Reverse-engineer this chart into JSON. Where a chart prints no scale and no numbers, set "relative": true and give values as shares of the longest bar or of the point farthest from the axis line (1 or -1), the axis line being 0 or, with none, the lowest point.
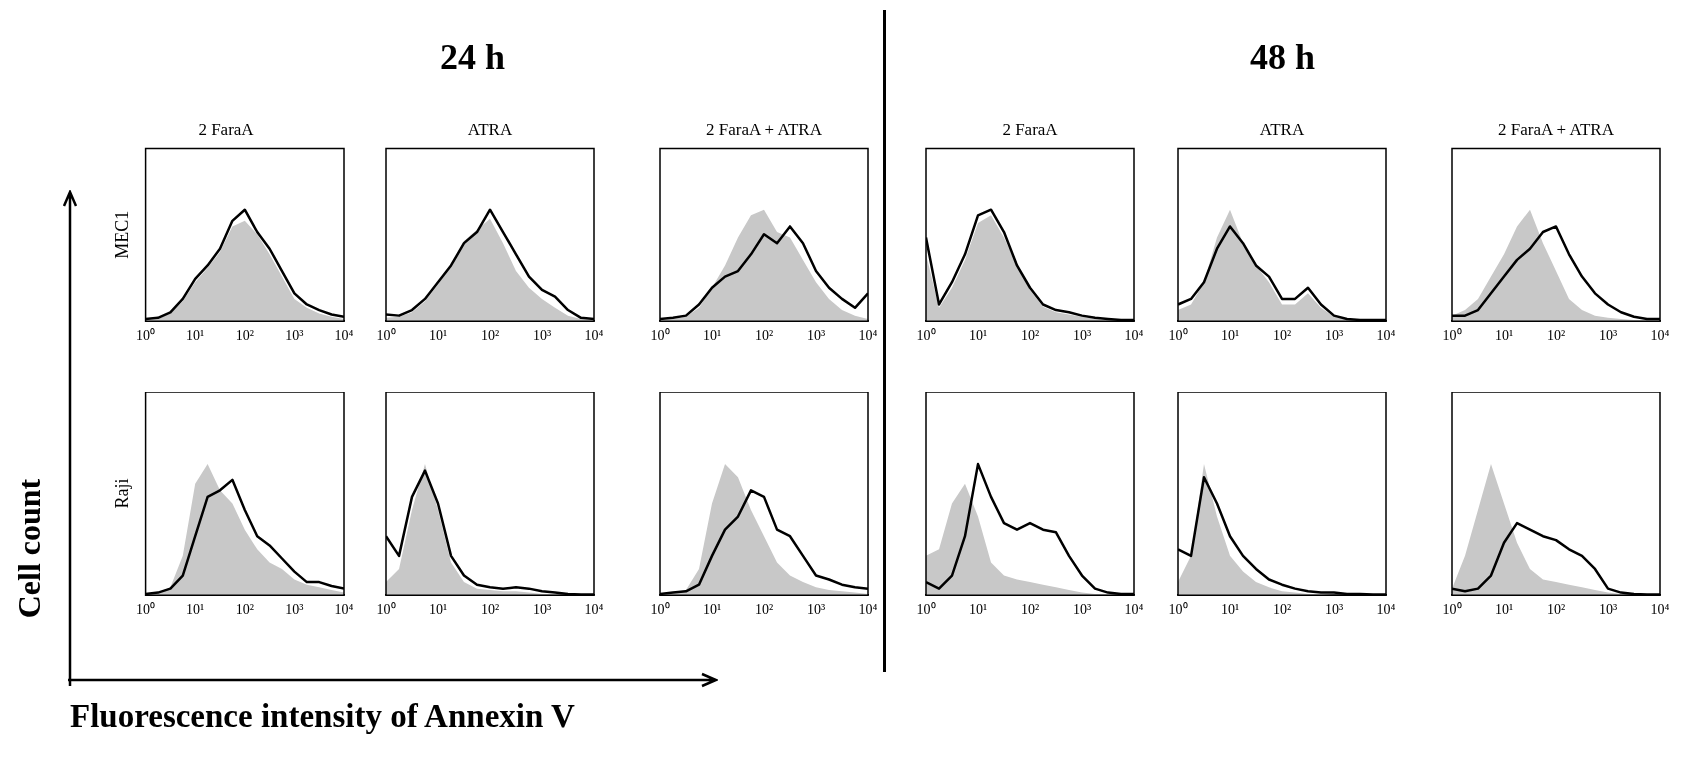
{
  "chart_data": [
    {
      "type": "area",
      "title": "2 FaraA",
      "ylabel": "MEC1",
      "annotations": [
        "24 h",
        "Cell count",
        "Fluorescence intensity of Annexin V"
      ],
      "relative": true,
      "log": "x",
      "tick_labels": "x",
      "legend": false,
      "grid": false,
      "xlim": [
        1,
        10000
      ],
      "xticks": [
        {
          "value": 1,
          "label": "10⁰"
        },
        {
          "value": 10,
          "label": "10¹"
        },
        {
          "value": 100,
          "label": "10²"
        },
        {
          "value": 1000,
          "label": "10³"
        },
        {
          "value": 10000,
          "label": "10⁴"
        }
      ],
      "x": [
        1,
        1.78,
        3.16,
        5.62,
        10,
        17.8,
        31.6,
        56.2,
        100,
        178,
        316,
        562,
        1000,
        1780,
        3160,
        5620,
        10000
      ],
      "series": [
        {
          "type": "area",
          "color": "#c8c8c8",
          "values": [
            0.01,
            0.02,
            0.07,
            0.18,
            0.35,
            0.48,
            0.62,
            0.85,
            0.9,
            0.78,
            0.6,
            0.4,
            0.2,
            0.12,
            0.07,
            0.04,
            0.02
          ]
        },
        {
          "type": "line",
          "color": "#000000",
          "values": [
            0.02,
            0.03,
            0.08,
            0.2,
            0.38,
            0.5,
            0.65,
            0.9,
            1,
            0.8,
            0.65,
            0.45,
            0.25,
            0.15,
            0.1,
            0.06,
            0.04
          ]
        }
      ]
    },
    {
      "type": "area",
      "title": "ATRA",
      "relative": true,
      "log": "x",
      "tick_labels": "x",
      "legend": false,
      "grid": false,
      "xlim": [
        1,
        10000
      ],
      "xticks": [
        {
          "value": 1,
          "label": "10⁰"
        },
        {
          "value": 10,
          "label": "10¹"
        },
        {
          "value": 100,
          "label": "10²"
        },
        {
          "value": 1000,
          "label": "10³"
        },
        {
          "value": 10000,
          "label": "10⁴"
        }
      ],
      "x": [
        1,
        1.78,
        3.16,
        5.62,
        10,
        17.8,
        31.6,
        56.2,
        100,
        178,
        316,
        562,
        1000,
        1780,
        3160,
        5620,
        10000
      ],
      "series": [
        {
          "type": "area",
          "color": "#c8c8c8",
          "values": [
            0.03,
            0.04,
            0.08,
            0.18,
            0.33,
            0.5,
            0.72,
            0.82,
            0.92,
            0.7,
            0.45,
            0.3,
            0.2,
            0.12,
            0.05,
            0.02,
            0.01
          ]
        },
        {
          "type": "line",
          "color": "#000000",
          "values": [
            0.06,
            0.05,
            0.1,
            0.2,
            0.35,
            0.5,
            0.7,
            0.8,
            1,
            0.8,
            0.6,
            0.4,
            0.28,
            0.22,
            0.1,
            0.03,
            0.02
          ]
        }
      ]
    },
    {
      "type": "area",
      "title": "2 FaraA + ATRA",
      "relative": true,
      "log": "x",
      "tick_labels": "x",
      "legend": false,
      "grid": false,
      "xlim": [
        1,
        10000
      ],
      "xticks": [
        {
          "value": 1,
          "label": "10⁰"
        },
        {
          "value": 10,
          "label": "10¹"
        },
        {
          "value": 100,
          "label": "10²"
        },
        {
          "value": 1000,
          "label": "10³"
        },
        {
          "value": 10000,
          "label": "10⁴"
        }
      ],
      "x": [
        1,
        1.78,
        3.16,
        5.62,
        10,
        17.8,
        31.6,
        56.2,
        100,
        178,
        316,
        562,
        1000,
        1780,
        3160,
        5620,
        10000
      ],
      "series": [
        {
          "type": "area",
          "color": "#c8c8c8",
          "values": [
            0.01,
            0.02,
            0.04,
            0.12,
            0.3,
            0.5,
            0.75,
            0.95,
            1,
            0.8,
            0.75,
            0.55,
            0.35,
            0.2,
            0.1,
            0.05,
            0.02
          ]
        },
        {
          "type": "line",
          "color": "#000000",
          "values": [
            0.02,
            0.03,
            0.05,
            0.15,
            0.3,
            0.4,
            0.45,
            0.6,
            0.78,
            0.7,
            0.85,
            0.7,
            0.45,
            0.3,
            0.2,
            0.12,
            0.25
          ]
        }
      ]
    },
    {
      "type": "area",
      "title": "2 FaraA",
      "annotations": [
        "48 h"
      ],
      "relative": true,
      "log": "x",
      "tick_labels": "x",
      "legend": false,
      "grid": false,
      "xlim": [
        1,
        10000
      ],
      "xticks": [
        {
          "value": 1,
          "label": "10⁰"
        },
        {
          "value": 10,
          "label": "10¹"
        },
        {
          "value": 100,
          "label": "10²"
        },
        {
          "value": 1000,
          "label": "10³"
        },
        {
          "value": 10000,
          "label": "10⁴"
        }
      ],
      "x": [
        1,
        1.78,
        3.16,
        5.62,
        10,
        17.8,
        31.6,
        56.2,
        100,
        178,
        316,
        562,
        1000,
        1780,
        3160,
        5620,
        10000
      ],
      "series": [
        {
          "type": "area",
          "color": "#c8c8c8",
          "values": [
            0.6,
            0.12,
            0.3,
            0.55,
            0.88,
            0.95,
            0.75,
            0.5,
            0.28,
            0.13,
            0.08,
            0.06,
            0.04,
            0.02,
            0.01,
            0.01,
            0.01
          ]
        },
        {
          "type": "line",
          "color": "#000000",
          "values": [
            0.75,
            0.15,
            0.35,
            0.6,
            0.95,
            1,
            0.8,
            0.5,
            0.3,
            0.15,
            0.1,
            0.08,
            0.05,
            0.03,
            0.02,
            0.01,
            0.01
          ]
        }
      ]
    },
    {
      "type": "area",
      "title": "ATRA",
      "relative": true,
      "log": "x",
      "tick_labels": "x",
      "legend": false,
      "grid": false,
      "xlim": [
        1,
        10000
      ],
      "xticks": [
        {
          "value": 1,
          "label": "10⁰"
        },
        {
          "value": 10,
          "label": "10¹"
        },
        {
          "value": 100,
          "label": "10²"
        },
        {
          "value": 1000,
          "label": "10³"
        },
        {
          "value": 10000,
          "label": "10⁴"
        }
      ],
      "x": [
        1,
        1.78,
        3.16,
        5.62,
        10,
        17.8,
        31.6,
        56.2,
        100,
        178,
        316,
        562,
        1000,
        1780,
        3160,
        5620,
        10000
      ],
      "series": [
        {
          "type": "area",
          "color": "#c8c8c8",
          "values": [
            0.1,
            0.15,
            0.35,
            0.75,
            1,
            0.7,
            0.5,
            0.35,
            0.15,
            0.15,
            0.25,
            0.12,
            0.04,
            0.02,
            0.01,
            0.01,
            0.01
          ]
        },
        {
          "type": "line",
          "color": "#000000",
          "values": [
            0.15,
            0.2,
            0.35,
            0.65,
            0.85,
            0.7,
            0.5,
            0.4,
            0.2,
            0.2,
            0.3,
            0.15,
            0.05,
            0.02,
            0.01,
            0.01,
            0.01
          ]
        }
      ]
    },
    {
      "type": "area",
      "title": "2 FaraA + ATRA",
      "relative": true,
      "log": "x",
      "tick_labels": "x",
      "legend": false,
      "grid": false,
      "xlim": [
        1,
        10000
      ],
      "xticks": [
        {
          "value": 1,
          "label": "10⁰"
        },
        {
          "value": 10,
          "label": "10¹"
        },
        {
          "value": 100,
          "label": "10²"
        },
        {
          "value": 1000,
          "label": "10³"
        },
        {
          "value": 10000,
          "label": "10⁴"
        }
      ],
      "x": [
        1,
        1.78,
        3.16,
        5.62,
        10,
        17.8,
        31.6,
        56.2,
        100,
        178,
        316,
        562,
        1000,
        1780,
        3160,
        5620,
        10000
      ],
      "series": [
        {
          "type": "area",
          "color": "#c8c8c8",
          "values": [
            0.05,
            0.1,
            0.2,
            0.4,
            0.6,
            0.85,
            1,
            0.7,
            0.45,
            0.2,
            0.1,
            0.05,
            0.03,
            0.02,
            0.01,
            0.01,
            0.01
          ]
        },
        {
          "type": "line",
          "color": "#000000",
          "values": [
            0.05,
            0.05,
            0.1,
            0.25,
            0.4,
            0.55,
            0.65,
            0.8,
            0.85,
            0.6,
            0.4,
            0.25,
            0.15,
            0.08,
            0.04,
            0.02,
            0.02
          ]
        }
      ]
    },
    {
      "type": "area",
      "ylabel": "Raji",
      "relative": true,
      "log": "x",
      "tick_labels": "x",
      "legend": false,
      "grid": false,
      "xlim": [
        1,
        10000
      ],
      "xticks": [
        {
          "value": 1,
          "label": "10⁰"
        },
        {
          "value": 10,
          "label": "10¹"
        },
        {
          "value": 100,
          "label": "10²"
        },
        {
          "value": 1000,
          "label": "10³"
        },
        {
          "value": 10000,
          "label": "10⁴"
        }
      ],
      "x": [
        1,
        1.78,
        3.16,
        5.62,
        10,
        17.8,
        31.6,
        56.2,
        100,
        178,
        316,
        562,
        1000,
        1780,
        3160,
        5620,
        10000
      ],
      "series": [
        {
          "type": "area",
          "color": "#c8c8c8",
          "values": [
            0.01,
            0.02,
            0.06,
            0.3,
            0.85,
            1,
            0.8,
            0.7,
            0.5,
            0.35,
            0.25,
            0.2,
            0.12,
            0.08,
            0.06,
            0.04,
            0.02
          ]
        },
        {
          "type": "line",
          "color": "#000000",
          "values": [
            0.01,
            0.02,
            0.05,
            0.15,
            0.45,
            0.75,
            0.8,
            0.88,
            0.65,
            0.45,
            0.38,
            0.28,
            0.18,
            0.1,
            0.1,
            0.07,
            0.05
          ]
        }
      ]
    },
    {
      "type": "area",
      "relative": true,
      "log": "x",
      "tick_labels": "x",
      "legend": false,
      "grid": false,
      "xlim": [
        1,
        10000
      ],
      "xticks": [
        {
          "value": 1,
          "label": "10⁰"
        },
        {
          "value": 10,
          "label": "10¹"
        },
        {
          "value": 100,
          "label": "10²"
        },
        {
          "value": 1000,
          "label": "10³"
        },
        {
          "value": 10000,
          "label": "10⁴"
        }
      ],
      "x": [
        1,
        1.78,
        3.16,
        5.62,
        10,
        17.8,
        31.6,
        56.2,
        100,
        178,
        316,
        562,
        1000,
        1780,
        3160,
        5620,
        10000
      ],
      "series": [
        {
          "type": "area",
          "color": "#c8c8c8",
          "values": [
            0.1,
            0.2,
            0.65,
            1,
            0.65,
            0.25,
            0.1,
            0.05,
            0.04,
            0.03,
            0.03,
            0.02,
            0.01,
            0.01,
            0.005,
            0.005,
            0.005
          ]
        },
        {
          "type": "line",
          "color": "#000000",
          "values": [
            0.45,
            0.3,
            0.75,
            0.95,
            0.7,
            0.3,
            0.15,
            0.08,
            0.06,
            0.05,
            0.06,
            0.05,
            0.03,
            0.02,
            0.01,
            0.005,
            0.005
          ]
        }
      ]
    },
    {
      "type": "area",
      "relative": true,
      "log": "x",
      "tick_labels": "x",
      "legend": false,
      "grid": false,
      "xlim": [
        1,
        10000
      ],
      "xticks": [
        {
          "value": 1,
          "label": "10⁰"
        },
        {
          "value": 10,
          "label": "10¹"
        },
        {
          "value": 100,
          "label": "10²"
        },
        {
          "value": 1000,
          "label": "10³"
        },
        {
          "value": 10000,
          "label": "10⁴"
        }
      ],
      "x": [
        1,
        1.78,
        3.16,
        5.62,
        10,
        17.8,
        31.6,
        56.2,
        100,
        178,
        316,
        562,
        1000,
        1780,
        3160,
        5620,
        10000
      ],
      "series": [
        {
          "type": "area",
          "color": "#c8c8c8",
          "values": [
            0.01,
            0.02,
            0.04,
            0.2,
            0.7,
            1,
            0.9,
            0.65,
            0.45,
            0.25,
            0.15,
            0.1,
            0.06,
            0.04,
            0.03,
            0.02,
            0.01
          ]
        },
        {
          "type": "line",
          "color": "#000000",
          "values": [
            0.01,
            0.02,
            0.03,
            0.08,
            0.3,
            0.5,
            0.6,
            0.8,
            0.75,
            0.5,
            0.45,
            0.3,
            0.15,
            0.12,
            0.08,
            0.06,
            0.05
          ]
        }
      ]
    },
    {
      "type": "area",
      "relative": true,
      "log": "x",
      "tick_labels": "x",
      "legend": false,
      "grid": false,
      "xlim": [
        1,
        10000
      ],
      "xticks": [
        {
          "value": 1,
          "label": "10⁰"
        },
        {
          "value": 10,
          "label": "10¹"
        },
        {
          "value": 100,
          "label": "10²"
        },
        {
          "value": 1000,
          "label": "10³"
        },
        {
          "value": 10000,
          "label": "10⁴"
        }
      ],
      "x": [
        1,
        1.78,
        3.16,
        5.62,
        10,
        17.8,
        31.6,
        56.2,
        100,
        178,
        316,
        562,
        1000,
        1780,
        3160,
        5620,
        10000
      ],
      "series": [
        {
          "type": "area",
          "color": "#c8c8c8",
          "values": [
            0.3,
            0.35,
            0.7,
            0.85,
            0.6,
            0.25,
            0.15,
            0.12,
            0.1,
            0.08,
            0.06,
            0.04,
            0.02,
            0.01,
            0.01,
            0.005,
            0.005
          ]
        },
        {
          "type": "line",
          "color": "#000000",
          "values": [
            0.1,
            0.05,
            0.15,
            0.45,
            1,
            0.75,
            0.55,
            0.5,
            0.55,
            0.5,
            0.48,
            0.3,
            0.15,
            0.05,
            0.02,
            0.01,
            0.01
          ]
        }
      ]
    },
    {
      "type": "area",
      "relative": true,
      "log": "x",
      "tick_labels": "x",
      "legend": false,
      "grid": false,
      "xlim": [
        1,
        10000
      ],
      "xticks": [
        {
          "value": 1,
          "label": "10⁰"
        },
        {
          "value": 10,
          "label": "10¹"
        },
        {
          "value": 100,
          "label": "10²"
        },
        {
          "value": 1000,
          "label": "10³"
        },
        {
          "value": 10000,
          "label": "10⁴"
        }
      ],
      "x": [
        1,
        1.78,
        3.16,
        5.62,
        10,
        17.8,
        31.6,
        56.2,
        100,
        178,
        316,
        562,
        1000,
        1780,
        3160,
        5620,
        10000
      ],
      "series": [
        {
          "type": "area",
          "color": "#c8c8c8",
          "values": [
            0.1,
            0.3,
            1,
            0.6,
            0.3,
            0.18,
            0.1,
            0.06,
            0.03,
            0.02,
            0.01,
            0.01,
            0.005,
            0.005,
            0.005,
            0,
            0
          ]
        },
        {
          "type": "line",
          "color": "#000000",
          "values": [
            0.35,
            0.3,
            0.9,
            0.7,
            0.45,
            0.3,
            0.2,
            0.12,
            0.08,
            0.05,
            0.03,
            0.02,
            0.02,
            0.01,
            0.01,
            0.005,
            0.005
          ]
        }
      ]
    },
    {
      "type": "area",
      "relative": true,
      "log": "x",
      "tick_labels": "x",
      "legend": false,
      "grid": false,
      "xlim": [
        1,
        10000
      ],
      "xticks": [
        {
          "value": 1,
          "label": "10⁰"
        },
        {
          "value": 10,
          "label": "10¹"
        },
        {
          "value": 100,
          "label": "10²"
        },
        {
          "value": 1000,
          "label": "10³"
        },
        {
          "value": 10000,
          "label": "10⁴"
        }
      ],
      "x": [
        1,
        1.78,
        3.16,
        5.62,
        10,
        17.8,
        31.6,
        56.2,
        100,
        178,
        316,
        562,
        1000,
        1780,
        3160,
        5620,
        10000
      ],
      "series": [
        {
          "type": "area",
          "color": "#c8c8c8",
          "values": [
            0.05,
            0.3,
            0.65,
            1,
            0.7,
            0.4,
            0.2,
            0.12,
            0.1,
            0.08,
            0.06,
            0.04,
            0.02,
            0.01,
            0.005,
            0.005,
            0.005
          ]
        },
        {
          "type": "line",
          "color": "#000000",
          "values": [
            0.05,
            0.03,
            0.05,
            0.15,
            0.4,
            0.55,
            0.5,
            0.45,
            0.42,
            0.35,
            0.3,
            0.2,
            0.05,
            0.02,
            0.01,
            0.005,
            0.005
          ]
        }
      ]
    }
  ]
}
